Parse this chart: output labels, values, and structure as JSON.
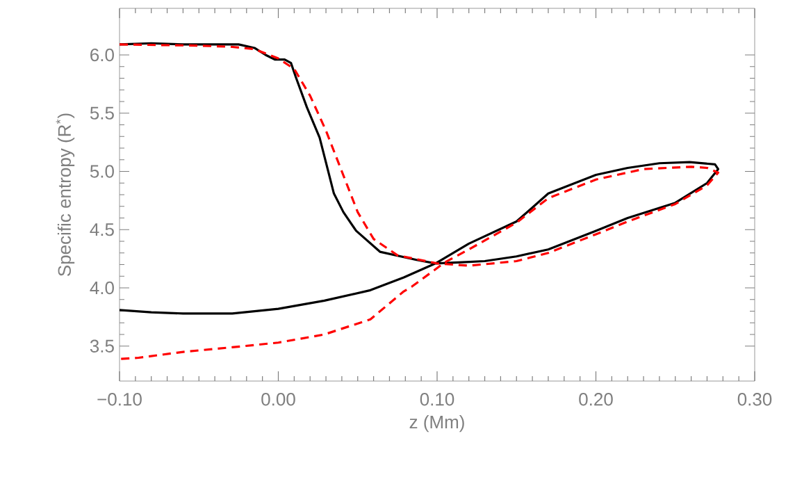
{
  "chart_data": {
    "type": "line",
    "xlabel": "z (Mm)",
    "ylabel": "Specific entropy (R$^{*}$)",
    "xlim": [
      -0.1,
      0.3
    ],
    "ylim": [
      3.2,
      6.4
    ],
    "xticks": [
      {
        "value": -0.1,
        "label": "−0.10"
      },
      {
        "value": 0.0,
        "label": "0.00"
      },
      {
        "value": 0.1,
        "label": "0.10"
      },
      {
        "value": 0.2,
        "label": "0.20"
      },
      {
        "value": 0.3,
        "label": "0.30"
      }
    ],
    "yticks": [
      {
        "value": 3.5,
        "label": "3.5"
      },
      {
        "value": 4.0,
        "label": "4.0"
      },
      {
        "value": 4.5,
        "label": "4.5"
      },
      {
        "value": 5.0,
        "label": "5.0"
      },
      {
        "value": 5.5,
        "label": "5.5"
      },
      {
        "value": 6.0,
        "label": "6.0"
      }
    ],
    "marker": "none",
    "series": [
      {
        "color": "#000000",
        "line_style": "solid",
        "x": [
          -0.1,
          -0.08,
          -0.06,
          -0.035,
          -0.025,
          -0.015,
          -0.008,
          -0.002,
          0.004,
          0.008,
          0.011,
          0.018,
          0.026,
          0.035,
          0.041,
          0.049,
          0.064,
          0.087,
          0.099,
          0.116,
          0.13,
          0.15,
          0.17,
          0.2,
          0.22,
          0.25,
          0.27,
          0.277,
          0.275,
          0.259,
          0.24,
          0.22,
          0.2,
          0.17,
          0.15,
          0.12,
          0.099,
          0.079,
          0.058,
          0.029,
          0.0,
          -0.029,
          -0.06,
          -0.08,
          -0.1
        ],
        "values": [
          6.09,
          6.1,
          6.09,
          6.09,
          6.09,
          6.06,
          6.0,
          5.96,
          5.96,
          5.93,
          5.81,
          5.55,
          5.29,
          4.81,
          4.65,
          4.49,
          4.31,
          4.24,
          4.21,
          4.22,
          4.23,
          4.27,
          4.33,
          4.49,
          4.6,
          4.73,
          4.9,
          5.02,
          5.06,
          5.08,
          5.07,
          5.03,
          4.97,
          4.81,
          4.57,
          4.38,
          4.21,
          4.09,
          3.98,
          3.89,
          3.82,
          3.78,
          3.78,
          3.79,
          3.81
        ]
      },
      {
        "color": "#ff0000",
        "line_style": "dashed",
        "x": [
          -0.1,
          -0.05,
          -0.03,
          -0.015,
          0.0,
          0.01,
          0.02,
          0.03,
          0.04,
          0.05,
          0.06,
          0.075,
          0.1,
          0.12,
          0.15,
          0.17,
          0.2,
          0.22,
          0.25,
          0.27,
          0.277,
          0.27,
          0.26,
          0.23,
          0.2,
          0.17,
          0.15,
          0.12,
          0.105,
          0.084,
          0.079,
          0.058,
          0.029,
          0.0,
          -0.029,
          -0.06,
          -0.088,
          -0.1
        ],
        "values": [
          6.09,
          6.08,
          6.07,
          6.05,
          5.97,
          5.88,
          5.65,
          5.35,
          5.0,
          4.65,
          4.42,
          4.28,
          4.21,
          4.19,
          4.23,
          4.3,
          4.46,
          4.57,
          4.72,
          4.88,
          4.99,
          5.03,
          5.04,
          5.02,
          4.93,
          4.77,
          4.56,
          4.33,
          4.22,
          4.01,
          3.97,
          3.73,
          3.6,
          3.53,
          3.49,
          3.45,
          3.4,
          3.39
        ]
      }
    ]
  }
}
